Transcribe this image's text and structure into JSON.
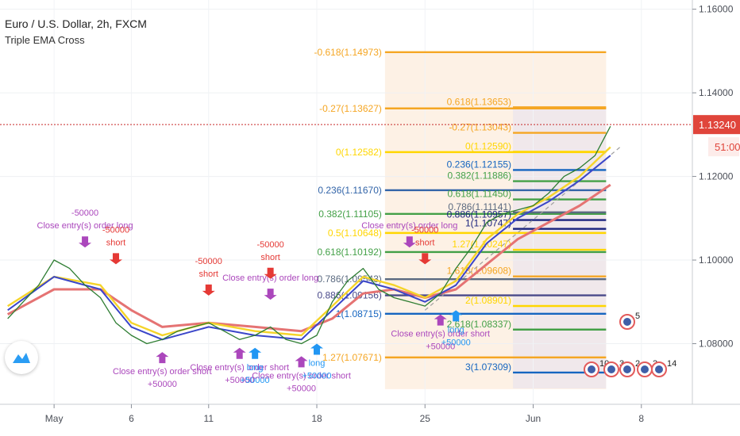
{
  "header": {
    "symbol": "Euro / U.S. Dollar, 2h, FXCM",
    "indicator": "Triple EMA Cross"
  },
  "badges": {
    "price": "1.13240",
    "countdown": "51:00"
  },
  "colors": {
    "price_line": "#c62828",
    "price_badge": "#e0453b",
    "ema_fast": "#3b46c9",
    "ema_mid": "#f5d42a",
    "ema_slow": "#e57373",
    "buy_arrow": "#2196f3",
    "sell_arrow": "#e53935",
    "close_arrow": "#ab47bc",
    "fib_box_left": "#fbe6cf",
    "fib_box_right": "#e7e3ef"
  },
  "chart_data": {
    "type": "line",
    "yticks": [
      "1.16000",
      "1.14000",
      "1.12000",
      "1.10000",
      "1.08000"
    ],
    "ylim": [
      1.0655,
      1.1622
    ],
    "xticks": [
      {
        "label": "May",
        "x": "2020-05-01"
      },
      {
        "label": "6",
        "x": "2020-05-06"
      },
      {
        "label": "11",
        "x": "2020-05-11"
      },
      {
        "label": "18",
        "x": "2020-05-18"
      },
      {
        "label": "25",
        "x": "2020-05-25"
      },
      {
        "label": "Jun",
        "x": "2020-06-01"
      },
      {
        "label": "8",
        "x": "2020-06-08"
      }
    ],
    "price": [
      [
        "2020-04-28",
        1.086
      ],
      [
        "2020-04-29",
        1.09
      ],
      [
        "2020-04-30",
        1.094
      ],
      [
        "2020-05-01",
        1.1
      ],
      [
        "2020-05-02",
        1.098
      ],
      [
        "2020-05-03",
        1.094
      ],
      [
        "2020-05-04",
        1.091
      ],
      [
        "2020-05-05",
        1.085
      ],
      [
        "2020-05-06",
        1.082
      ],
      [
        "2020-05-07",
        1.08
      ],
      [
        "2020-05-08",
        1.081
      ],
      [
        "2020-05-09",
        1.083
      ],
      [
        "2020-05-10",
        1.084
      ],
      [
        "2020-05-11",
        1.085
      ],
      [
        "2020-05-12",
        1.083
      ],
      [
        "2020-05-13",
        1.081
      ],
      [
        "2020-05-14",
        1.082
      ],
      [
        "2020-05-15",
        1.084
      ],
      [
        "2020-05-16",
        1.081
      ],
      [
        "2020-05-17",
        1.08
      ],
      [
        "2020-05-18",
        1.082
      ],
      [
        "2020-05-19",
        1.09
      ],
      [
        "2020-05-20",
        1.095
      ],
      [
        "2020-05-21",
        1.098
      ],
      [
        "2020-05-22",
        1.093
      ],
      [
        "2020-05-23",
        1.091
      ],
      [
        "2020-05-24",
        1.09
      ],
      [
        "2020-05-25",
        1.089
      ],
      [
        "2020-05-26",
        1.092
      ],
      [
        "2020-05-27",
        1.098
      ],
      [
        "2020-05-28",
        1.103
      ],
      [
        "2020-05-29",
        1.109
      ],
      [
        "2020-05-30",
        1.111
      ],
      [
        "2020-05-31",
        1.112
      ],
      [
        "2020-06-01",
        1.113
      ],
      [
        "2020-06-02",
        1.116
      ],
      [
        "2020-06-03",
        1.12
      ],
      [
        "2020-06-04",
        1.122
      ],
      [
        "2020-06-05",
        1.125
      ],
      [
        "2020-06-06",
        1.132
      ]
    ],
    "ema_fast": [
      [
        "2020-04-28",
        1.088
      ],
      [
        "2020-05-01",
        1.096
      ],
      [
        "2020-05-04",
        1.093
      ],
      [
        "2020-05-06",
        1.084
      ],
      [
        "2020-05-08",
        1.081
      ],
      [
        "2020-05-11",
        1.084
      ],
      [
        "2020-05-14",
        1.082
      ],
      [
        "2020-05-17",
        1.081
      ],
      [
        "2020-05-19",
        1.088
      ],
      [
        "2020-05-21",
        1.095
      ],
      [
        "2020-05-23",
        1.093
      ],
      [
        "2020-05-25",
        1.09
      ],
      [
        "2020-05-27",
        1.094
      ],
      [
        "2020-05-29",
        1.104
      ],
      [
        "2020-05-31",
        1.11
      ],
      [
        "2020-06-02",
        1.114
      ],
      [
        "2020-06-04",
        1.119
      ],
      [
        "2020-06-06",
        1.125
      ]
    ],
    "ema_mid": [
      [
        "2020-04-28",
        1.089
      ],
      [
        "2020-05-01",
        1.096
      ],
      [
        "2020-05-04",
        1.094
      ],
      [
        "2020-05-06",
        1.085
      ],
      [
        "2020-05-08",
        1.082
      ],
      [
        "2020-05-11",
        1.085
      ],
      [
        "2020-05-14",
        1.083
      ],
      [
        "2020-05-17",
        1.082
      ],
      [
        "2020-05-19",
        1.089
      ],
      [
        "2020-05-21",
        1.096
      ],
      [
        "2020-05-23",
        1.094
      ],
      [
        "2020-05-25",
        1.091
      ],
      [
        "2020-05-27",
        1.095
      ],
      [
        "2020-05-29",
        1.105
      ],
      [
        "2020-05-31",
        1.111
      ],
      [
        "2020-06-02",
        1.115
      ],
      [
        "2020-06-04",
        1.12
      ],
      [
        "2020-06-06",
        1.127
      ]
    ],
    "ema_slow": [
      [
        "2020-04-28",
        1.087
      ],
      [
        "2020-05-01",
        1.093
      ],
      [
        "2020-05-04",
        1.093
      ],
      [
        "2020-05-06",
        1.088
      ],
      [
        "2020-05-08",
        1.084
      ],
      [
        "2020-05-11",
        1.085
      ],
      [
        "2020-05-14",
        1.084
      ],
      [
        "2020-05-17",
        1.083
      ],
      [
        "2020-05-19",
        1.086
      ],
      [
        "2020-05-21",
        1.092
      ],
      [
        "2020-05-23",
        1.093
      ],
      [
        "2020-05-25",
        1.091
      ],
      [
        "2020-05-27",
        1.093
      ],
      [
        "2020-05-29",
        1.099
      ],
      [
        "2020-05-31",
        1.105
      ],
      [
        "2020-06-02",
        1.109
      ],
      [
        "2020-06-04",
        1.113
      ],
      [
        "2020-06-06",
        1.118
      ]
    ],
    "fib_levels_1": [
      {
        "label": "-0.618(1.14973)",
        "y": 1.14973,
        "color": "#f5a623"
      },
      {
        "label": "-0.27(1.13627)",
        "y": 1.13627,
        "color": "#f5a623"
      },
      {
        "label": "0(1.12582)",
        "y": 1.12582,
        "color": "#ffd600"
      },
      {
        "label": "0.236(1.11670)",
        "y": 1.1167,
        "color": "#3264a8"
      },
      {
        "label": "0.382(1.11105)",
        "y": 1.11105,
        "color": "#43a047"
      },
      {
        "label": "0.5(1.10648)",
        "y": 1.10648,
        "color": "#ffd600"
      },
      {
        "label": "0.618(1.10192)",
        "y": 1.10192,
        "color": "#43a047"
      },
      {
        "label": "0.786(1.09543)",
        "y": 1.09543,
        "color": "#5b6a80"
      },
      {
        "label": "0.886(1.09156)",
        "y": 1.09156,
        "color": "#4a4a8a"
      },
      {
        "label": "1(1.08715)",
        "y": 1.08715,
        "color": "#1565c0"
      },
      {
        "label": "1.27(1.07671)",
        "y": 1.07671,
        "color": "#f5a623"
      }
    ],
    "fib_levels_2": [
      {
        "label": "0.618(1.13653)",
        "y": 1.13653,
        "color": "#f5a623"
      },
      {
        "label": "-0.27(1.13043)",
        "y": 1.13043,
        "color": "#f5a623"
      },
      {
        "label": "0(1.12590)",
        "y": 1.1259,
        "color": "#ffd600"
      },
      {
        "label": "0.236(1.12155)",
        "y": 1.12155,
        "color": "#1565c0"
      },
      {
        "label": "0.382(1.11886)",
        "y": 1.11886,
        "color": "#43a047"
      },
      {
        "label": "0.618(1.11450)",
        "y": 1.1145,
        "color": "#43a047"
      },
      {
        "label": "0.786(1.11141)",
        "y": 1.11141,
        "color": "#5b6a80"
      },
      {
        "label": "0.886(1.10957)",
        "y": 1.10957,
        "color": "#1a237e"
      },
      {
        "label": "1(1.10747)",
        "y": 1.10747,
        "color": "#1a237e"
      },
      {
        "label": "1.27(1.10247)",
        "y": 1.10247,
        "color": "#ffd600"
      },
      {
        "label": "1.618(1.09608)",
        "y": 1.09608,
        "color": "#f5a623"
      },
      {
        "label": "2(1.08901)",
        "y": 1.08901,
        "color": "#ffd600"
      },
      {
        "label": "2.618(1.08337)",
        "y": 1.08337,
        "color": "#43a047"
      },
      {
        "label": "3(1.07309)",
        "y": 1.07309,
        "color": "#1565c0"
      }
    ],
    "signals": [
      {
        "x": "2020-05-03",
        "y": 1.103,
        "dir": "down",
        "color": "#ab47bc",
        "labels": [
          "-50000",
          "Close entry(s) order long"
        ]
      },
      {
        "x": "2020-05-05",
        "y": 1.099,
        "dir": "down",
        "color": "#e53935",
        "labels": [
          "-50000",
          "short"
        ]
      },
      {
        "x": "2020-05-08",
        "y": 1.078,
        "dir": "up",
        "color": "#ab47bc",
        "labels": [
          "Close entry(s) order short",
          "+50000"
        ]
      },
      {
        "x": "2020-05-11",
        "y": 1.0915,
        "dir": "down",
        "color": "#e53935",
        "labels": [
          "-50000",
          "short"
        ]
      },
      {
        "x": "2020-05-13",
        "y": 1.079,
        "dir": "up",
        "color": "#ab47bc",
        "labels": [
          "Close entry(s) order short",
          "+50000"
        ]
      },
      {
        "x": "2020-05-14",
        "y": 1.079,
        "dir": "up",
        "color": "#2196f3",
        "labels": [
          "long",
          "+50000"
        ]
      },
      {
        "x": "2020-05-15",
        "y": 1.0905,
        "dir": "down",
        "color": "#ab47bc",
        "labels": [
          "Close entry(s) order long"
        ]
      },
      {
        "x": "2020-05-15",
        "y": 1.0955,
        "dir": "down",
        "color": "#e53935",
        "labels": [
          "-50000",
          "short"
        ]
      },
      {
        "x": "2020-05-17",
        "y": 1.077,
        "dir": "up",
        "color": "#ab47bc",
        "labels": [
          "Close entry(s) order short",
          "+50000"
        ]
      },
      {
        "x": "2020-05-18",
        "y": 1.08,
        "dir": "up",
        "color": "#2196f3",
        "labels": [
          "long",
          "+50000"
        ]
      },
      {
        "x": "2020-05-24",
        "y": 1.103,
        "dir": "down",
        "color": "#ab47bc",
        "labels": [
          "Close entry(s) order long"
        ]
      },
      {
        "x": "2020-05-25",
        "y": 1.099,
        "dir": "down",
        "color": "#e53935",
        "labels": [
          "-50000",
          "short"
        ]
      },
      {
        "x": "2020-05-26",
        "y": 1.087,
        "dir": "up",
        "color": "#ab47bc",
        "labels": [
          "Close entry(s) order short",
          "+50000"
        ]
      },
      {
        "x": "2020-05-27",
        "y": 1.088,
        "dir": "up",
        "color": "#2196f3",
        "labels": [
          "long",
          "+50000"
        ]
      }
    ],
    "event_badges": [
      "5",
      "10",
      "3",
      "2",
      "3",
      "14"
    ]
  }
}
